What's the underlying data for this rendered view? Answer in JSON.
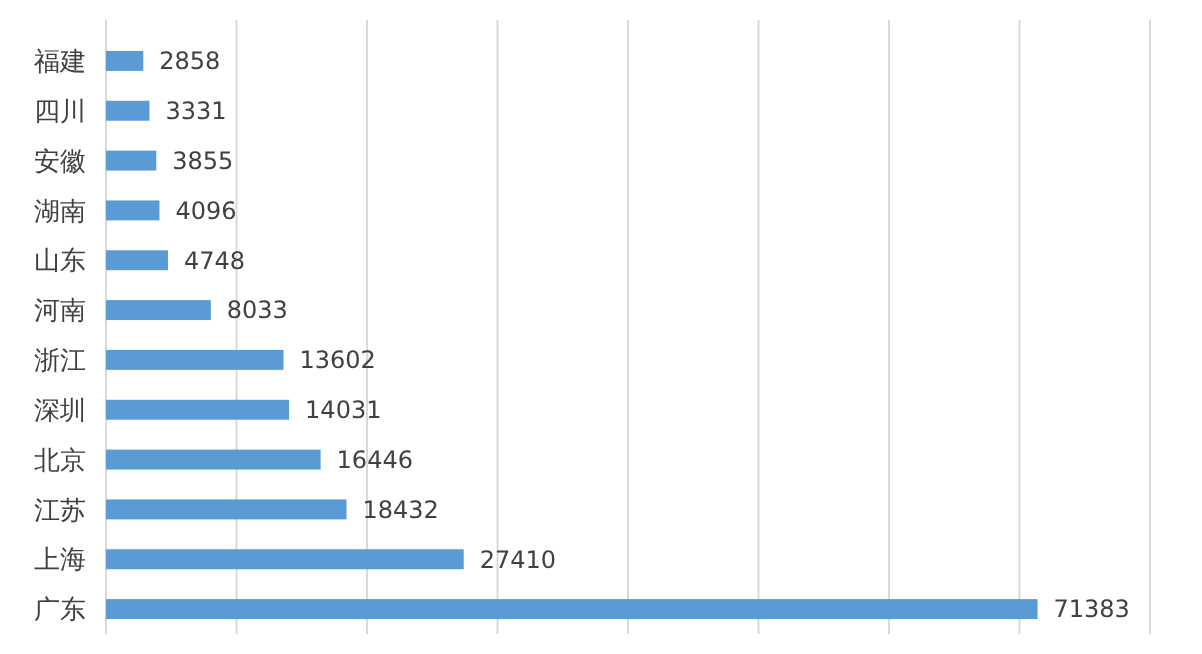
{
  "chart_data": {
    "type": "bar",
    "orientation": "horizontal",
    "categories": [
      "福建",
      "四川",
      "安徽",
      "湖南",
      "山东",
      "河南",
      "浙江",
      "深圳",
      "北京",
      "江苏",
      "上海",
      "广东"
    ],
    "values": [
      2858,
      3331,
      3855,
      4096,
      4748,
      8033,
      13602,
      14031,
      16446,
      18432,
      27410,
      71383
    ],
    "color": "#5b9bd5",
    "data_labels": true,
    "grid": "x",
    "tick_labels": "y",
    "xlim": [
      0,
      80000
    ],
    "xticks": [
      {
        "value": 0,
        "label": null
      },
      {
        "value": 10000,
        "label": null
      },
      {
        "value": 20000,
        "label": null
      },
      {
        "value": 30000,
        "label": null
      },
      {
        "value": 40000,
        "label": null
      },
      {
        "value": 50000,
        "label": null
      },
      {
        "value": 60000,
        "label": null
      },
      {
        "value": 70000,
        "label": null
      },
      {
        "value": 80000,
        "label": null
      }
    ]
  }
}
